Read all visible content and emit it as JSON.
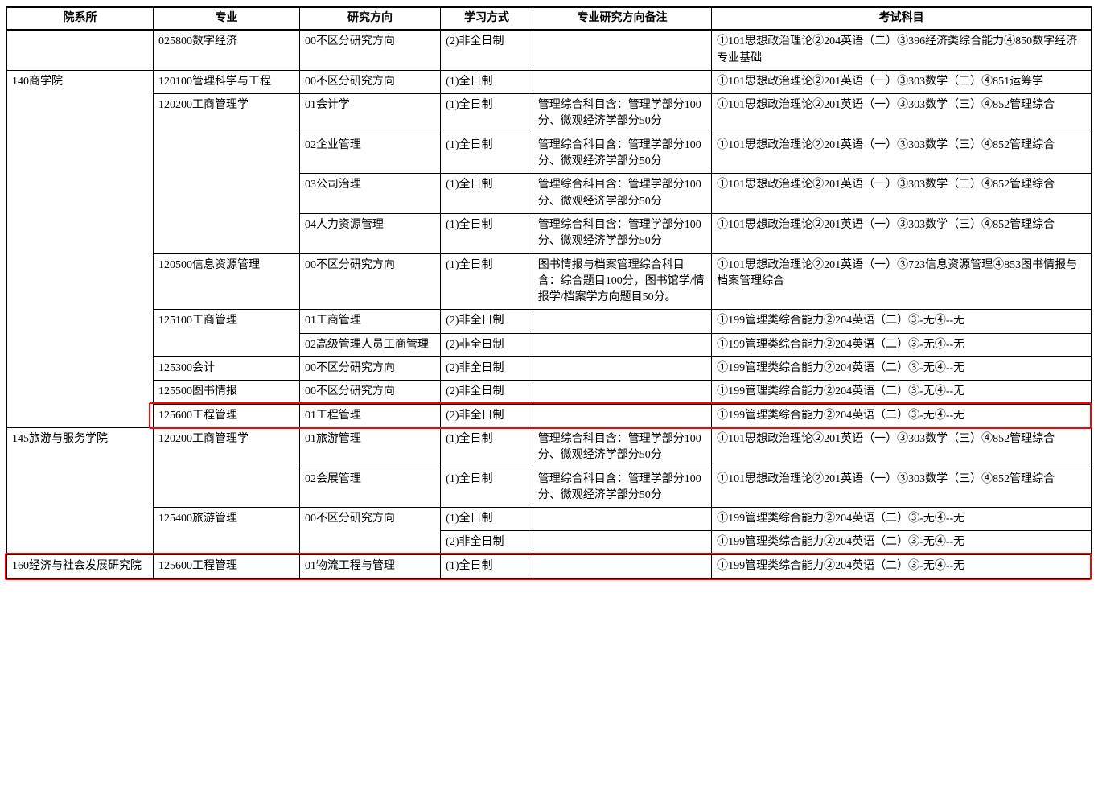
{
  "headers": {
    "dept": "院系所",
    "major": "专业",
    "direction": "研究方向",
    "mode": "学习方式",
    "note": "专业研究方向备注",
    "exam": "考试科目"
  },
  "mgmt_note": "管理综合科目含：管理学部分100分、微观经济学部分50分",
  "rows": [
    {
      "dept": "",
      "major": "025800数字经济",
      "direction": "00不区分研究方向",
      "mode": "(2)非全日制",
      "note": "",
      "exam": "①101思想政治理论②204英语（二）③396经济类综合能力④850数字经济专业基础",
      "deptRowspan": 1,
      "majorRowspan": 1,
      "noteClip": false
    },
    {
      "dept": "140商学院",
      "major": "120100管理科学与工程",
      "direction": "00不区分研究方向",
      "mode": "(1)全日制",
      "note": "",
      "exam": "①101思想政治理论②201英语（一）③303数学（三）④851运筹学",
      "deptRowspan": 11,
      "majorRowspan": 1,
      "noteClip": false
    },
    {
      "major": "120200工商管理学",
      "direction": "01会计学",
      "mode": "(1)全日制",
      "note": "@mgmt",
      "exam": "①101思想政治理论②201英语（一）③303数学（三）④852管理综合",
      "majorRowspan": 4,
      "noteClip": true
    },
    {
      "direction": "02企业管理",
      "mode": "(1)全日制",
      "note": "@mgmt",
      "exam": "①101思想政治理论②201英语（一）③303数学（三）④852管理综合",
      "noteClip": true
    },
    {
      "direction": "03公司治理",
      "mode": "(1)全日制",
      "note": "@mgmt",
      "exam": "①101思想政治理论②201英语（一）③303数学（三）④852管理综合",
      "noteClip": true
    },
    {
      "direction": "04人力资源管理",
      "mode": "(1)全日制",
      "note": "@mgmt",
      "exam": "①101思想政治理论②201英语（一）③303数学（三）④852管理综合",
      "noteClip": true
    },
    {
      "major": "120500信息资源管理",
      "direction": "00不区分研究方向",
      "mode": "(1)全日制",
      "note": "图书情报与档案管理综合科目含：综合题目100分，图书馆学/情报学/档案学方向题目50分。",
      "exam": "①101思想政治理论②201英语（一）③723信息资源管理④853图书情报与档案管理综合",
      "majorRowspan": 1,
      "noteClip": false
    },
    {
      "major": "125100工商管理",
      "direction": "01工商管理",
      "mode": "(2)非全日制",
      "note": "",
      "exam": "①199管理类综合能力②204英语（二）③-无④--无",
      "majorRowspan": 2,
      "noteClip": false
    },
    {
      "direction": "02高级管理人员工商管理",
      "mode": "(2)非全日制",
      "note": "",
      "exam": "①199管理类综合能力②204英语（二）③-无④--无",
      "noteClip": false
    },
    {
      "major": "125300会计",
      "direction": "00不区分研究方向",
      "mode": "(2)非全日制",
      "note": "",
      "exam": "①199管理类综合能力②204英语（二）③-无④--无",
      "majorRowspan": 1,
      "noteClip": false
    },
    {
      "major": "125500图书情报",
      "direction": "00不区分研究方向",
      "mode": "(2)非全日制",
      "note": "",
      "exam": "①199管理类综合能力②204英语（二）③-无④--无",
      "majorRowspan": 1,
      "noteClip": false
    },
    {
      "major": "125600工程管理",
      "direction": "01工程管理",
      "mode": "(2)非全日制",
      "note": "",
      "exam": "①199管理类综合能力②204英语（二）③-无④--无",
      "majorRowspan": 1,
      "noteClip": false,
      "hlRow": "hl1"
    },
    {
      "dept": "145旅游与服务学院",
      "major": "120200工商管理学",
      "direction": "01旅游管理",
      "mode": "(1)全日制",
      "note": "@mgmt",
      "exam": "①101思想政治理论②201英语（一）③303数学（三）④852管理综合",
      "deptRowspan": 4,
      "majorRowspan": 2,
      "noteClip": true
    },
    {
      "direction": "02会展管理",
      "mode": "(1)全日制",
      "note": "@mgmt",
      "exam": "①101思想政治理论②201英语（一）③303数学（三）④852管理综合",
      "noteClip": true
    },
    {
      "major": "125400旅游管理",
      "direction": "00不区分研究方向",
      "mode": "(1)全日制",
      "note": "",
      "exam": "①199管理类综合能力②204英语（二）③-无④--无",
      "majorRowspan": 2,
      "dirRowspan": 2,
      "noteClip": false
    },
    {
      "mode": "(2)非全日制",
      "note": "",
      "exam": "①199管理类综合能力②204英语（二）③-无④--无",
      "noteClip": false
    },
    {
      "dept": "160经济与社会发展研究院",
      "major": "125600工程管理",
      "direction": "01物流工程与管理",
      "mode": "(1)全日制",
      "note": "",
      "exam": "①199管理类综合能力②204英语（二）③-无④--无",
      "deptRowspan": 1,
      "majorRowspan": 1,
      "noteClip": false,
      "hlRow": "hl2",
      "deptClip": true
    }
  ],
  "highlight": {
    "color": "#ff0000",
    "row1_left_pct": 13.3,
    "row2_left_pct": 0
  }
}
